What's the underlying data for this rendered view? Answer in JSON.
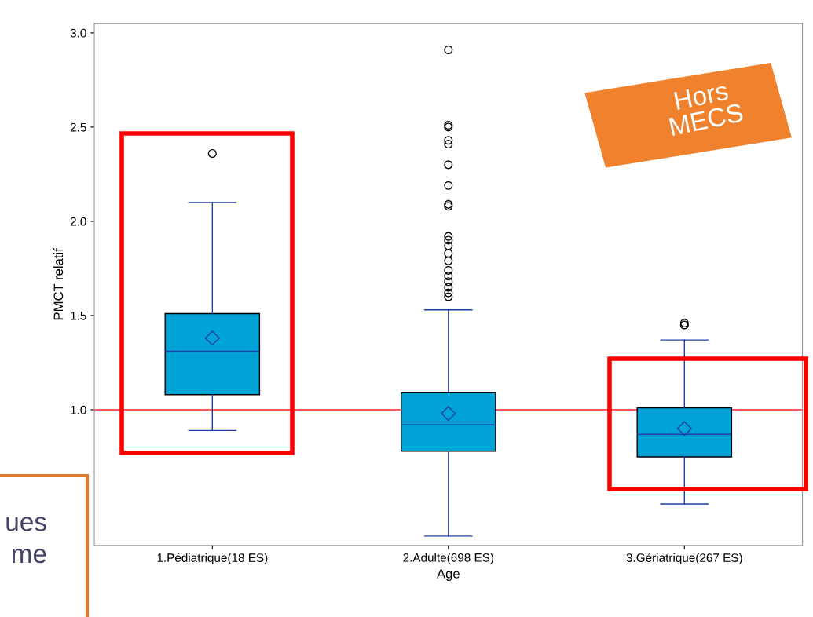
{
  "chart_data": {
    "type": "box",
    "xlabel": "Age",
    "ylabel": "PMCT relatif",
    "categories": [
      "1.Pédiatrique(18 ES)",
      "2.Adulte(698 ES)",
      "3.Gériatrique(267 ES)"
    ],
    "boxes": [
      {
        "low": 0.89,
        "q1": 1.08,
        "median": 1.31,
        "q3": 1.51,
        "high": 2.1,
        "mean": 1.38,
        "outliers": [
          2.36
        ]
      },
      {
        "low": 0.33,
        "q1": 0.78,
        "median": 0.92,
        "q3": 1.09,
        "high": 1.53,
        "mean": 0.98,
        "outliers": [
          2.91,
          2.51,
          2.5,
          2.43,
          2.41,
          2.3,
          2.19,
          2.09,
          2.08,
          1.92,
          1.9,
          1.87,
          1.83,
          1.79,
          1.74,
          1.71,
          1.68,
          1.65,
          1.62,
          1.6
        ]
      },
      {
        "low": 0.5,
        "q1": 0.75,
        "median": 0.87,
        "q3": 1.01,
        "high": 1.37,
        "mean": 0.9,
        "outliers": [
          1.46,
          1.45
        ]
      }
    ],
    "color": "#00a3d6",
    "ylim": [
      0.28,
      3.05
    ],
    "yticks": [
      {
        "value": 1,
        "label": "1.0"
      },
      {
        "value": 1.5,
        "label": "1.5"
      },
      {
        "value": 2,
        "label": "2.0"
      },
      {
        "value": 2.5,
        "label": "2.5"
      },
      {
        "value": 3,
        "label": "3.0"
      }
    ],
    "ref_lines": [
      {
        "axis": "y",
        "value": 1,
        "color": "#ff2020"
      }
    ],
    "grid": false,
    "annotations": [
      "Hors\nMECS",
      "ues\nme"
    ]
  }
}
